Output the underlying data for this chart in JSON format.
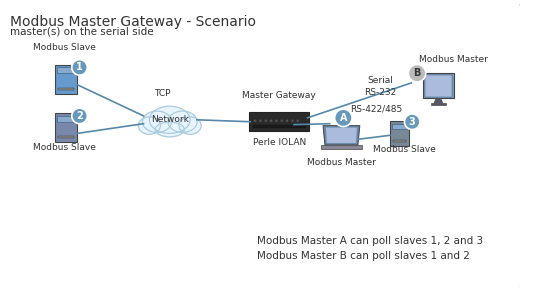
{
  "title": "Modbus Master Gateway - Scenario",
  "subtitle": "master(s) on the serial side",
  "bg_color": "#ffffff",
  "annotation": "Modbus Master A can poll slaves 1, 2 and 3\nModbus Master B can poll slaves 1 and 2",
  "labels": {
    "slave1": "Modbus Slave",
    "slave2": "Modbus Slave",
    "slave3": "Modbus Slave",
    "masterA": "Modbus Master",
    "masterB": "Modbus Master",
    "network": "Network",
    "gateway": "Master Gateway",
    "iolan": "Perle IOLAN",
    "tcp": "TCP",
    "serial": "Serial",
    "rs232": "RS-232",
    "rs422": "RS-422/485"
  },
  "colors": {
    "border_color": "#aaccee",
    "line": "#5588aa",
    "circle_fill": "#6699bb",
    "circle_text": "#ffffff",
    "device_blue": "#6699cc",
    "device_dark": "#333333",
    "cloud_fill": "#e8f4ff",
    "cloud_stroke": "#aaccdd",
    "text_dark": "#333333",
    "label_gray": "#555555"
  }
}
